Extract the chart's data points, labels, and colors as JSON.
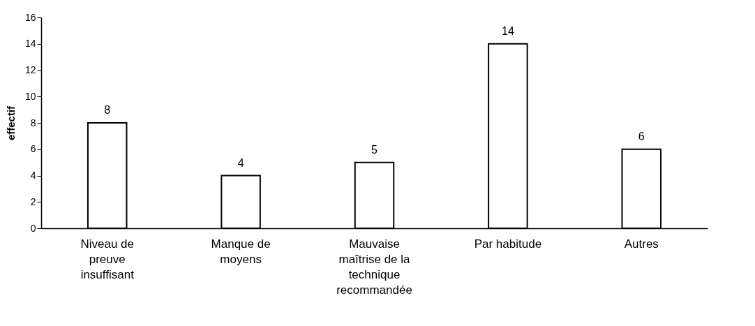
{
  "chart_data": {
    "type": "bar",
    "ylabel": "effectif",
    "categories": [
      "Niveau de preuve insuffisant",
      "Manque de moyens",
      "Mauvaise maîtrise de la technique recommandée",
      "Par habitude",
      "Autres"
    ],
    "values": [
      8,
      4,
      5,
      14,
      6
    ],
    "color": "#ffffff",
    "ylim": [
      0,
      16
    ],
    "yticks": [
      0,
      2,
      4,
      6,
      8,
      10,
      12,
      14,
      16
    ],
    "grid": false,
    "data_labels": true
  }
}
